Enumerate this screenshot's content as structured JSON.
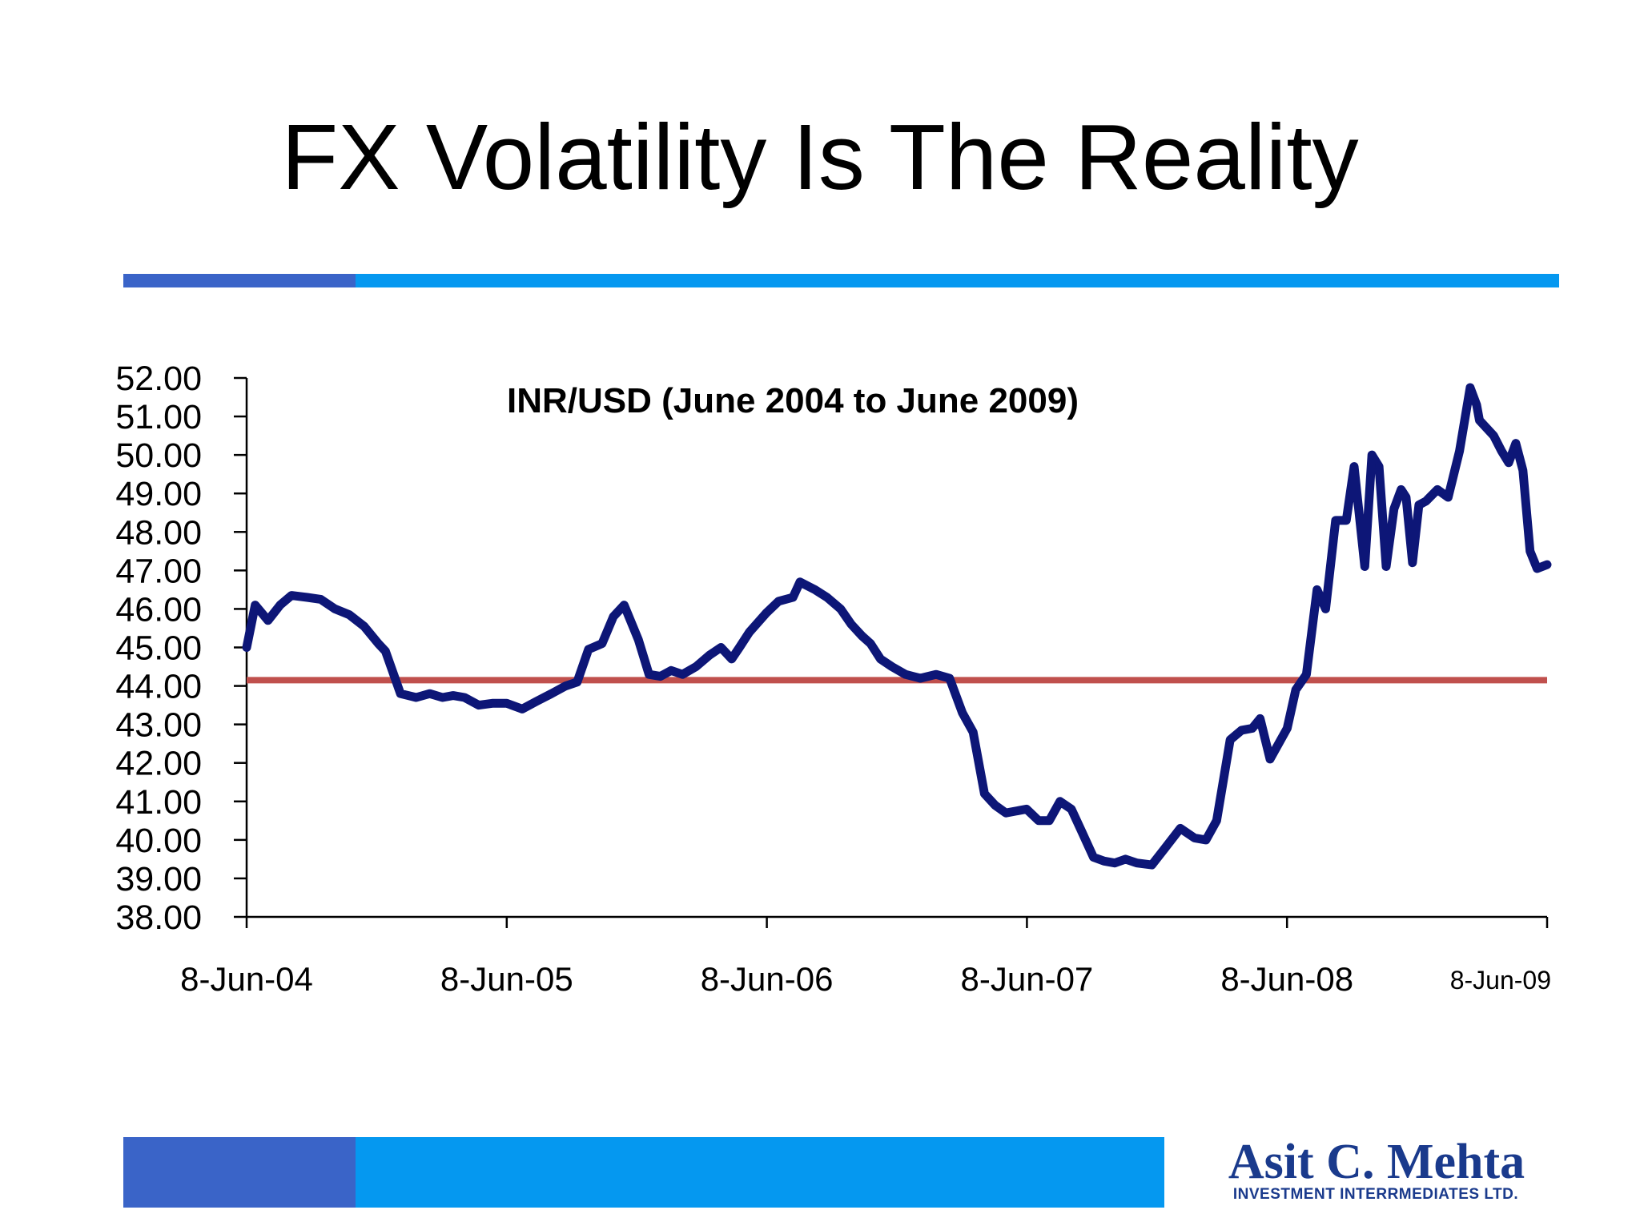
{
  "slide": {
    "title": "FX Volatility Is The Reality"
  },
  "colors": {
    "bar_dark": "#3a64c8",
    "bar_light": "#0598f0",
    "line": "#0d1677",
    "reference_line": "#c0504d",
    "logo": "#1a3a8c"
  },
  "logo": {
    "name": "Asit C. Mehta",
    "subtitle": "INVESTMENT INTERRMEDIATES LTD."
  },
  "chart_data": {
    "type": "line",
    "title": "INR/USD (June 2004  to June 2009)",
    "xlabel": "",
    "ylabel": "",
    "ylim": [
      38,
      52
    ],
    "xlim": [
      "2004-06-08",
      "2009-06-08"
    ],
    "y_ticks": [
      "38.00",
      "39.00",
      "40.00",
      "41.00",
      "42.00",
      "43.00",
      "44.00",
      "45.00",
      "46.00",
      "47.00",
      "48.00",
      "49.00",
      "50.00",
      "51.00",
      "52.00"
    ],
    "x_ticks": [
      "8-Jun-04",
      "8-Jun-05",
      "8-Jun-06",
      "8-Jun-07",
      "8-Jun-08",
      "8-Jun-09"
    ],
    "grid": false,
    "legend": "none",
    "reference_line": {
      "y": 44.15
    },
    "series": [
      {
        "x": [
          "2004-06-08",
          "2004-06-20",
          "2004-07-08",
          "2004-07-25",
          "2004-08-10",
          "2004-09-01",
          "2004-09-20",
          "2004-10-10",
          "2004-10-30",
          "2004-11-20",
          "2004-12-10",
          "2004-12-20",
          "2005-01-10",
          "2005-02-01",
          "2005-02-20",
          "2005-03-10",
          "2005-03-25",
          "2005-04-10",
          "2005-04-30",
          "2005-05-20",
          "2005-06-08",
          "2005-06-30",
          "2005-07-20",
          "2005-08-10",
          "2005-08-30",
          "2005-09-15",
          "2005-10-01",
          "2005-10-20",
          "2005-11-05",
          "2005-11-20",
          "2005-12-10",
          "2005-12-25",
          "2006-01-10",
          "2006-01-25",
          "2006-02-10",
          "2006-03-01",
          "2006-03-20",
          "2006-04-05",
          "2006-04-20",
          "2006-05-01",
          "2006-05-15",
          "2006-06-08",
          "2006-06-25",
          "2006-07-15",
          "2006-07-25",
          "2006-08-15",
          "2006-09-01",
          "2006-09-20",
          "2006-10-05",
          "2006-10-20",
          "2006-11-01",
          "2006-11-15",
          "2006-12-01",
          "2006-12-20",
          "2007-01-10",
          "2007-02-01",
          "2007-02-20",
          "2007-03-10",
          "2007-03-25",
          "2007-04-10",
          "2007-04-25",
          "2007-05-10",
          "2007-06-08",
          "2007-06-25",
          "2007-07-10",
          "2007-07-25",
          "2007-08-10",
          "2007-08-25",
          "2007-09-10",
          "2007-09-25",
          "2007-10-10",
          "2007-10-25",
          "2007-11-10",
          "2007-12-01",
          "2007-12-20",
          "2008-01-10",
          "2008-01-30",
          "2008-02-15",
          "2008-03-01",
          "2008-03-20",
          "2008-04-05",
          "2008-04-20",
          "2008-05-01",
          "2008-05-15",
          "2008-06-08",
          "2008-06-20",
          "2008-07-05",
          "2008-07-20",
          "2008-08-01",
          "2008-08-15",
          "2008-08-30",
          "2008-09-10",
          "2008-09-25",
          "2008-10-05",
          "2008-10-15",
          "2008-10-25",
          "2008-11-05",
          "2008-11-15",
          "2008-11-22",
          "2008-12-01",
          "2008-12-10",
          "2008-12-20",
          "2009-01-05",
          "2009-01-20",
          "2009-02-05",
          "2009-02-20",
          "2009-03-01",
          "2009-03-05",
          "2009-03-15",
          "2009-03-25",
          "2009-04-05",
          "2009-04-15",
          "2009-04-25",
          "2009-05-05",
          "2009-05-15",
          "2009-05-25",
          "2009-06-08"
        ],
        "values": [
          45.0,
          46.1,
          45.7,
          46.1,
          46.35,
          46.3,
          46.25,
          46.0,
          45.85,
          45.55,
          45.1,
          44.9,
          43.8,
          43.7,
          43.8,
          43.7,
          43.75,
          43.7,
          43.5,
          43.55,
          43.55,
          43.4,
          43.6,
          43.8,
          44.0,
          44.1,
          44.95,
          45.1,
          45.8,
          46.1,
          45.2,
          44.3,
          44.25,
          44.4,
          44.3,
          44.5,
          44.8,
          45.0,
          44.7,
          45.0,
          45.4,
          45.9,
          46.2,
          46.3,
          46.7,
          46.5,
          46.3,
          46.0,
          45.6,
          45.3,
          45.1,
          44.7,
          44.5,
          44.3,
          44.2,
          44.3,
          44.2,
          43.3,
          42.8,
          41.2,
          40.9,
          40.7,
          40.8,
          40.5,
          40.5,
          41.0,
          40.8,
          40.2,
          39.55,
          39.45,
          39.4,
          39.5,
          39.4,
          39.35,
          39.8,
          40.3,
          40.05,
          40.0,
          40.5,
          42.6,
          42.85,
          42.9,
          43.15,
          42.1,
          42.9,
          43.9,
          44.3,
          46.5,
          46.0,
          48.3,
          48.3,
          49.7,
          47.1,
          50.0,
          49.7,
          47.1,
          48.6,
          49.1,
          48.9,
          47.2,
          48.7,
          48.8,
          49.1,
          48.9,
          50.1,
          51.75,
          51.3,
          50.9,
          50.7,
          50.5,
          50.1,
          49.8,
          50.3,
          49.6,
          47.5,
          47.05,
          47.15
        ]
      }
    ]
  }
}
